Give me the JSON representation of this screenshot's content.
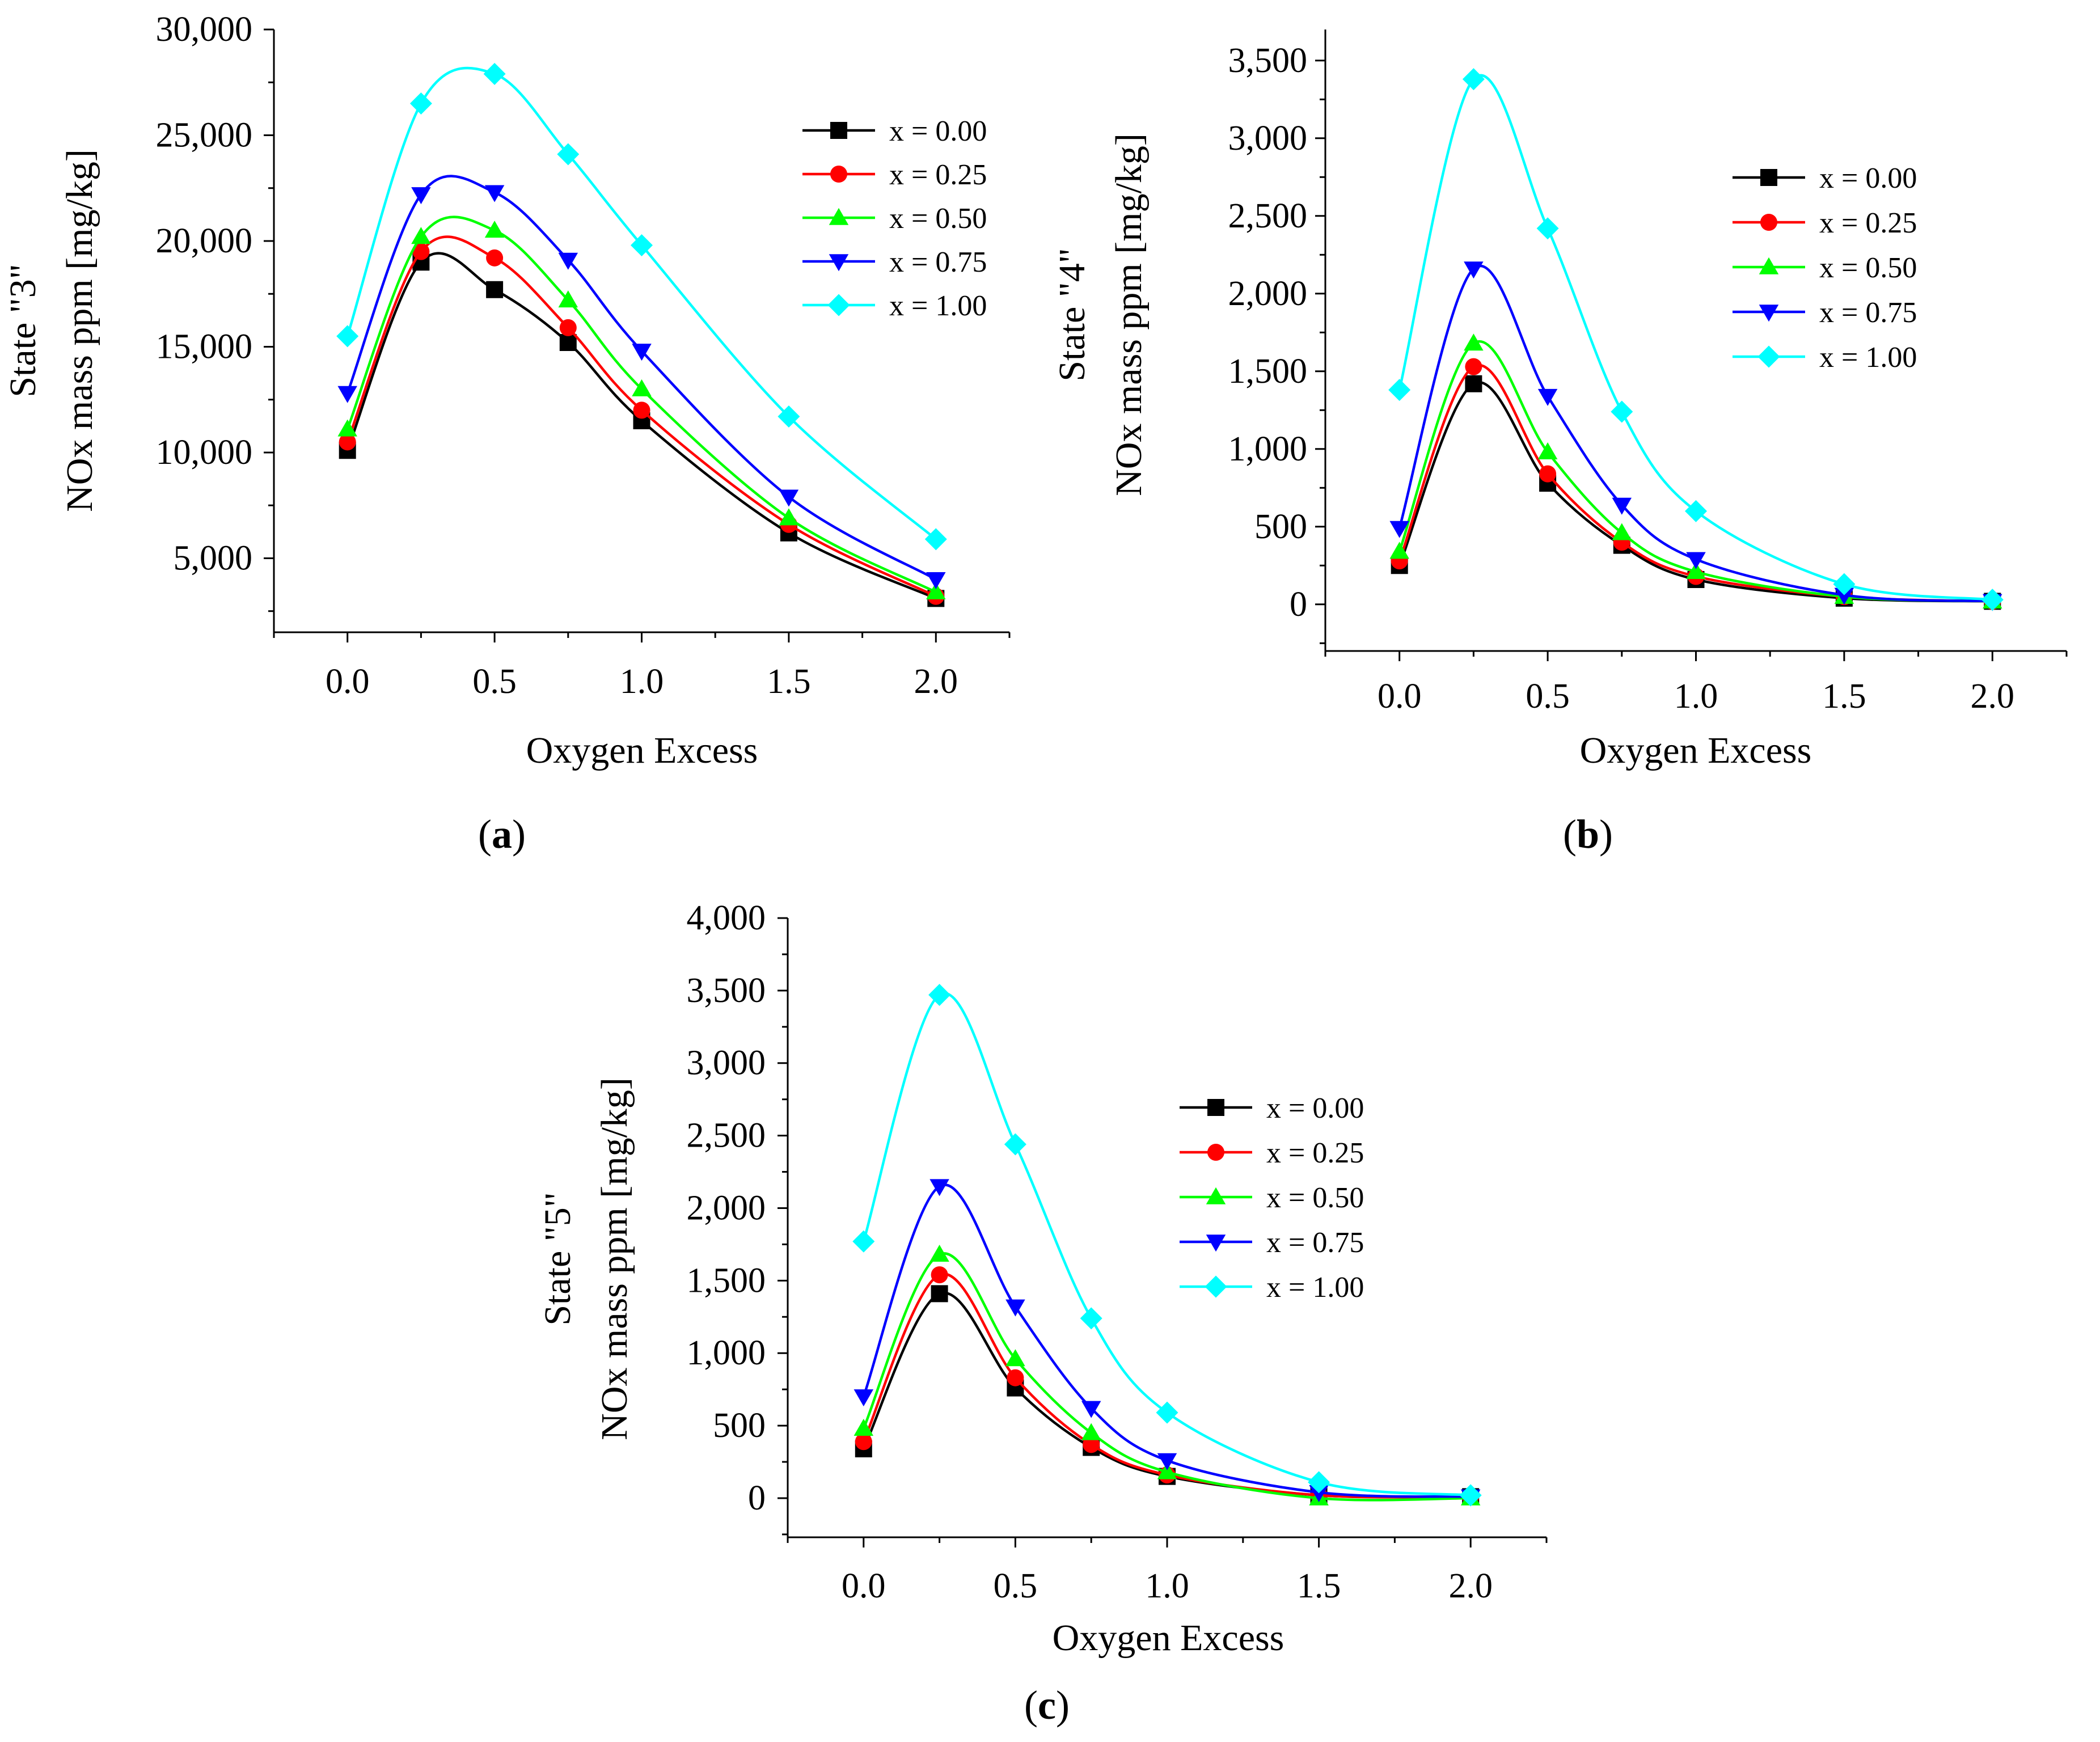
{
  "figure": {
    "panels": [
      {
        "id": "a",
        "caption_open": "(",
        "caption_letter": "a",
        "caption_close": ")"
      },
      {
        "id": "b",
        "caption_open": "(",
        "caption_letter": "b",
        "caption_close": ")"
      },
      {
        "id": "c",
        "caption_open": "(",
        "caption_letter": "c",
        "caption_close": ")"
      }
    ]
  },
  "chart_data": [
    {
      "panel": "a",
      "type": "line",
      "xlabel": "Oxygen Excess",
      "ylabel_line1": "State \"3\"",
      "ylabel_line2": "NOx mass ppm [mg/kg]",
      "xlim": [
        -0.25,
        2.25
      ],
      "ylim": [
        1500,
        30000
      ],
      "x_ticks": [
        0.0,
        0.5,
        1.0,
        1.5,
        2.0
      ],
      "x_tick_labels": [
        "0.0",
        "0.5",
        "1.0",
        "1.5",
        "2.0"
      ],
      "y_ticks": [
        5000,
        10000,
        15000,
        20000,
        25000,
        30000
      ],
      "y_tick_labels": [
        "5,000",
        "10,000",
        "15,000",
        "20,000",
        "25,000",
        "30,000"
      ],
      "y_minor_ticks": [
        2500,
        7500,
        12500,
        17500,
        22500,
        27500
      ],
      "legend_position": "top-right",
      "x": [
        0.0,
        0.25,
        0.5,
        0.75,
        1.0,
        1.5,
        2.0
      ],
      "series": [
        {
          "name": "x = 0.00",
          "color": "#000000",
          "marker": "square",
          "values": [
            10100,
            19000,
            17700,
            15200,
            11500,
            6200,
            3100
          ]
        },
        {
          "name": "x = 0.25",
          "color": "#ff0000",
          "marker": "circle",
          "values": [
            10500,
            19500,
            19200,
            15900,
            12000,
            6600,
            3200
          ]
        },
        {
          "name": "x = 0.50",
          "color": "#00ff00",
          "marker": "triangle-up",
          "values": [
            11100,
            20200,
            20500,
            17200,
            13000,
            6900,
            3400
          ]
        },
        {
          "name": "x = 0.75",
          "color": "#0000ff",
          "marker": "triangle-down",
          "values": [
            12800,
            22200,
            22300,
            19100,
            14800,
            7900,
            4000
          ]
        },
        {
          "name": "x = 1.00",
          "color": "#00ffff",
          "marker": "diamond",
          "values": [
            15500,
            26500,
            27900,
            24100,
            19800,
            11700,
            5900
          ]
        }
      ]
    },
    {
      "panel": "b",
      "type": "line",
      "xlabel": "Oxygen Excess",
      "ylabel_line1": "State \"4\"",
      "ylabel_line2": "NOx mass ppm [mg/kg]",
      "xlim": [
        -0.25,
        2.25
      ],
      "ylim": [
        -300,
        3700
      ],
      "x_ticks": [
        0.0,
        0.5,
        1.0,
        1.5,
        2.0
      ],
      "x_tick_labels": [
        "0.0",
        "0.5",
        "1.0",
        "1.5",
        "2.0"
      ],
      "y_ticks": [
        0,
        500,
        1000,
        1500,
        2000,
        2500,
        3000,
        3500
      ],
      "y_tick_labels": [
        "0",
        "500",
        "1,000",
        "1,500",
        "2,000",
        "2,500",
        "3,000",
        "3,500"
      ],
      "y_minor_ticks": [
        -250,
        250,
        750,
        1250,
        1750,
        2250,
        2750,
        3250
      ],
      "legend_position": "top-right",
      "x": [
        0.0,
        0.25,
        0.5,
        0.75,
        1.0,
        1.5,
        2.0
      ],
      "series": [
        {
          "name": "x = 0.00",
          "color": "#000000",
          "marker": "square",
          "values": [
            250,
            1420,
            780,
            380,
            160,
            40,
            20
          ]
        },
        {
          "name": "x = 0.25",
          "color": "#ff0000",
          "marker": "circle",
          "values": [
            280,
            1530,
            840,
            400,
            180,
            50,
            20
          ]
        },
        {
          "name": "x = 0.50",
          "color": "#00ff00",
          "marker": "triangle-up",
          "values": [
            340,
            1680,
            980,
            460,
            210,
            50,
            20
          ]
        },
        {
          "name": "x = 0.75",
          "color": "#0000ff",
          "marker": "triangle-down",
          "values": [
            490,
            2160,
            1340,
            640,
            290,
            60,
            20
          ]
        },
        {
          "name": "x = 1.00",
          "color": "#00ffff",
          "marker": "diamond",
          "values": [
            1380,
            3380,
            2420,
            1240,
            600,
            130,
            30
          ]
        }
      ]
    },
    {
      "panel": "c",
      "type": "line",
      "xlabel": "Oxygen Excess",
      "ylabel_line1": "State \"5\"",
      "ylabel_line2": "NOx mass ppm [mg/kg]",
      "xlim": [
        -0.25,
        2.25
      ],
      "ylim": [
        -270,
        4000
      ],
      "x_ticks": [
        0.0,
        0.5,
        1.0,
        1.5,
        2.0
      ],
      "x_tick_labels": [
        "0.0",
        "0.5",
        "1.0",
        "1.5",
        "2.0"
      ],
      "y_ticks": [
        0,
        500,
        1000,
        1500,
        2000,
        2500,
        3000,
        3500,
        4000
      ],
      "y_tick_labels": [
        "0",
        "500",
        "1,000",
        "1,500",
        "2,000",
        "2,500",
        "3,000",
        "3,500",
        "4,000"
      ],
      "y_minor_ticks": [
        -250,
        250,
        750,
        1250,
        1750,
        2250,
        2750,
        3250,
        3750
      ],
      "legend_position": "right",
      "x": [
        0.0,
        0.25,
        0.5,
        0.75,
        1.0,
        1.5,
        2.0
      ],
      "series": [
        {
          "name": "x = 0.00",
          "color": "#000000",
          "marker": "square",
          "values": [
            340,
            1410,
            760,
            350,
            150,
            20,
            10
          ]
        },
        {
          "name": "x = 0.25",
          "color": "#ff0000",
          "marker": "circle",
          "values": [
            390,
            1540,
            830,
            370,
            160,
            20,
            10
          ]
        },
        {
          "name": "x = 0.50",
          "color": "#00ff00",
          "marker": "triangle-up",
          "values": [
            480,
            1680,
            960,
            450,
            180,
            0,
            0
          ]
        },
        {
          "name": "x = 0.75",
          "color": "#0000ff",
          "marker": "triangle-down",
          "values": [
            700,
            2150,
            1320,
            620,
            260,
            40,
            10
          ]
        },
        {
          "name": "x = 1.00",
          "color": "#00ffff",
          "marker": "diamond",
          "values": [
            1770,
            3470,
            2440,
            1240,
            590,
            110,
            20
          ]
        }
      ]
    }
  ]
}
